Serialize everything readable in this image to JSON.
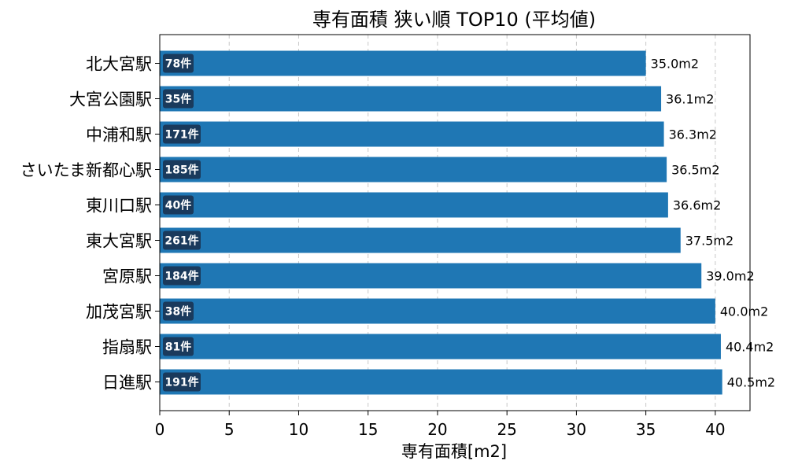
{
  "chart_data": {
    "type": "bar",
    "orientation": "horizontal",
    "title": "専有面積 狭い順 TOP10 (平均値)",
    "xlabel": "専有面積[m2]",
    "ylabel": "",
    "xlim": [
      0,
      42.5
    ],
    "xticks": [
      0,
      5,
      10,
      15,
      20,
      25,
      30,
      35,
      40
    ],
    "grid": "x-dashed",
    "bar_color": "#1f77b4",
    "count_badge_color": "#1a3a5c",
    "categories": [
      "北大宮駅",
      "大宮公園駅",
      "中浦和駅",
      "さいたま新都心駅",
      "東川口駅",
      "東大宮駅",
      "宮原駅",
      "加茂宮駅",
      "指扇駅",
      "日進駅"
    ],
    "values": [
      35.0,
      36.1,
      36.3,
      36.5,
      36.6,
      37.5,
      39.0,
      40.0,
      40.4,
      40.5
    ],
    "value_labels": [
      "35.0m2",
      "36.1m2",
      "36.3m2",
      "36.5m2",
      "36.6m2",
      "37.5m2",
      "39.0m2",
      "40.0m2",
      "40.4m2",
      "40.5m2"
    ],
    "counts": [
      "78件",
      "35件",
      "171件",
      "185件",
      "40件",
      "261件",
      "184件",
      "38件",
      "81件",
      "191件"
    ]
  }
}
